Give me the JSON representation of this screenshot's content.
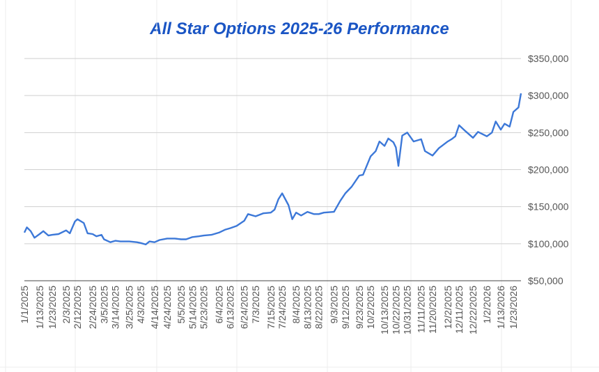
{
  "chart_data": {
    "type": "line",
    "title": "All Star Options 2025-26 Performance",
    "xlabel": "",
    "ylabel": "",
    "ylim": [
      50000,
      350000
    ],
    "y_ticks": [
      "$50,000",
      "$100,000",
      "$150,000",
      "$200,000",
      "$250,000",
      "$300,000",
      "$350,000"
    ],
    "y_tick_values": [
      50000,
      100000,
      150000,
      200000,
      250000,
      300000,
      350000
    ],
    "x_tick_labels": [
      "1/1/2025",
      "1/13/2025",
      "1/23/2025",
      "2/3/2025",
      "2/12/2025",
      "2/24/2025",
      "3/5/2025",
      "3/14/2025",
      "3/25/2025",
      "4/3/2025",
      "4/14/2025",
      "4/24/2025",
      "5/5/2025",
      "5/14/2025",
      "5/23/2025",
      "6/4/2025",
      "6/13/2025",
      "6/24/2025",
      "7/3/2025",
      "7/15/2025",
      "7/24/2025",
      "8/4/2025",
      "8/13/2025",
      "8/22/2025",
      "9/3/2025",
      "9/12/2025",
      "9/23/2025",
      "10/2/2025",
      "10/13/2025",
      "10/22/2025",
      "10/31/2025",
      "11/11/2025",
      "11/20/2025",
      "12/2/2025",
      "12/11/2025",
      "12/22/2025",
      "1/2/2026",
      "1/13/2026",
      "1/23/2026"
    ],
    "grid": true,
    "line_color": "#3c78d8",
    "title_color": "#1a55c4",
    "series": [
      {
        "x": [
          "1/1/2025",
          "1/3/2025",
          "1/6/2025",
          "1/9/2025",
          "1/13/2025",
          "1/16/2025",
          "1/20/2025",
          "1/23/2025",
          "1/28/2025",
          "2/3/2025",
          "2/6/2025",
          "2/10/2025",
          "2/12/2025",
          "2/17/2025",
          "2/20/2025",
          "2/24/2025",
          "2/27/2025",
          "3/3/2025",
          "3/5/2025",
          "3/10/2025",
          "3/14/2025",
          "3/18/2025",
          "3/25/2025",
          "3/31/2025",
          "4/3/2025",
          "4/7/2025",
          "4/10/2025",
          "4/14/2025",
          "4/18/2025",
          "4/24/2025",
          "4/30/2025",
          "5/5/2025",
          "5/9/2025",
          "5/14/2025",
          "5/19/2025",
          "5/23/2025",
          "5/29/2025",
          "6/4/2025",
          "6/9/2025",
          "6/13/2025",
          "6/18/2025",
          "6/24/2025",
          "6/27/2025",
          "7/3/2025",
          "7/9/2025",
          "7/15/2025",
          "7/18/2025",
          "7/21/2025",
          "7/24/2025",
          "7/29/2025",
          "8/1/2025",
          "8/4/2025",
          "8/8/2025",
          "8/13/2025",
          "8/18/2025",
          "8/22/2025",
          "8/26/2025",
          "9/3/2025",
          "9/8/2025",
          "9/12/2025",
          "9/17/2025",
          "9/23/2025",
          "9/26/2025",
          "10/2/2025",
          "10/6/2025",
          "10/9/2025",
          "10/13/2025",
          "10/16/2025",
          "10/20/2025",
          "10/22/2025",
          "10/24/2025",
          "10/27/2025",
          "10/31/2025",
          "11/5/2025",
          "11/11/2025",
          "11/14/2025",
          "11/20/2025",
          "11/25/2025",
          "12/2/2025",
          "12/5/2025",
          "12/8/2025",
          "12/11/2025",
          "12/16/2025",
          "12/22/2025",
          "12/26/2025",
          "1/2/2026",
          "1/6/2026",
          "1/9/2026",
          "1/13/2026",
          "1/16/2026",
          "1/20/2026",
          "1/23/2026",
          "1/27/2026",
          "1/29/2026"
        ],
        "values": [
          115000,
          122000,
          117000,
          108000,
          113000,
          117000,
          111000,
          112000,
          113000,
          118000,
          114000,
          130000,
          133000,
          128000,
          114000,
          113000,
          110000,
          112000,
          106000,
          102000,
          104000,
          103000,
          103000,
          102000,
          101000,
          99000,
          103000,
          102000,
          105000,
          107000,
          107000,
          106000,
          106000,
          109000,
          110000,
          111000,
          112000,
          115000,
          119000,
          121000,
          124000,
          131000,
          140000,
          137000,
          141000,
          142000,
          146000,
          160000,
          168000,
          152000,
          133000,
          142000,
          138000,
          143000,
          140000,
          140000,
          142000,
          143000,
          158000,
          168000,
          177000,
          192000,
          193000,
          218000,
          225000,
          238000,
          232000,
          242000,
          237000,
          230000,
          205000,
          246000,
          250000,
          238000,
          241000,
          225000,
          219000,
          229000,
          238000,
          241000,
          245000,
          260000,
          252000,
          243000,
          251000,
          245000,
          250000,
          265000,
          254000,
          262000,
          258000,
          278000,
          284000,
          303000
        ]
      }
    ]
  }
}
